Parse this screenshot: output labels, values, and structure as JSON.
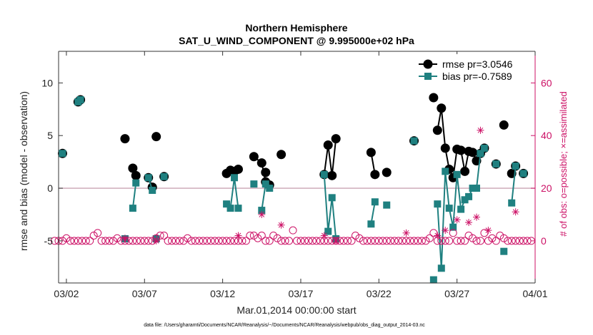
{
  "chart_data": {
    "type": "line",
    "title": "Northern Hemisphere",
    "subtitle": "SAT_U_WIND_COMPONENT @ 9.995000e+02 hPa",
    "xlabel": "Mar.01,2014 00:00:00 start",
    "ylabel": "rmse and bias (model - observation)",
    "y2label": "# of obs: o=possible; ×=assimilated",
    "footnote": "data file: /Users/gharamti/Documents/NCAR/Reanalysis/~/Documents/NCAR/Reanalysis/webpub/obs_diag_output_2014-03.nc",
    "xlim": [
      1.5,
      32
    ],
    "ylim": [
      -9,
      13
    ],
    "y2lim": [
      -16,
      72
    ],
    "x_ticks": [
      2,
      7,
      12,
      17,
      22,
      27,
      32
    ],
    "x_tick_labels": [
      "03/02",
      "03/07",
      "03/12",
      "03/17",
      "03/22",
      "03/27",
      "04/01"
    ],
    "y_ticks": [
      -5,
      0,
      5,
      10
    ],
    "y_tick_labels": [
      "-5",
      "0",
      "5",
      "10"
    ],
    "y2_ticks": [
      0,
      20,
      40,
      60
    ],
    "y2_tick_labels": [
      "0",
      "20",
      "40",
      "60"
    ],
    "legend_position": "top-right",
    "series": [
      {
        "name": "rmse pr=3.0546",
        "color": "#000000",
        "marker": "circle",
        "segments": [
          [
            [
              1.75,
              3.3
            ]
          ],
          [
            [
              2.75,
              8.2
            ],
            [
              2.9,
              8.4
            ]
          ],
          [
            [
              5.75,
              4.7
            ]
          ],
          [
            [
              6.25,
              1.9
            ],
            [
              6.45,
              1.2
            ]
          ],
          [
            [
              7.25,
              1.0
            ],
            [
              7.5,
              0.1
            ]
          ],
          [
            [
              7.75,
              4.9
            ]
          ],
          [
            [
              8.25,
              1.1
            ]
          ],
          [
            [
              12.25,
              1.4
            ],
            [
              12.5,
              1.7
            ],
            [
              12.75,
              1.6
            ],
            [
              13.0,
              1.8
            ]
          ],
          [
            [
              14.0,
              3.0
            ],
            [
              14.5,
              2.4
            ],
            [
              14.75,
              0.6
            ],
            [
              15.0,
              0.3
            ]
          ],
          [
            [
              14.75,
              1.5
            ]
          ],
          [
            [
              15.75,
              3.2
            ]
          ],
          [
            [
              18.5,
              1.3
            ],
            [
              18.75,
              4.1
            ],
            [
              19.0,
              1.2
            ],
            [
              19.25,
              4.7
            ]
          ],
          [
            [
              21.5,
              3.4
            ],
            [
              21.75,
              1.3
            ]
          ],
          [
            [
              22.5,
              1.5
            ]
          ],
          [
            [
              24.25,
              4.5
            ]
          ],
          [
            [
              25.5,
              8.6
            ]
          ],
          [
            [
              25.75,
              5.5
            ],
            [
              26.0,
              7.6
            ],
            [
              26.25,
              3.8
            ],
            [
              26.5,
              1.8
            ],
            [
              26.75,
              1.0
            ],
            [
              27.0,
              3.7
            ],
            [
              27.25,
              3.6
            ],
            [
              27.5,
              1.6
            ],
            [
              27.75,
              3.5
            ],
            [
              28.0,
              3.4
            ],
            [
              28.25,
              2.6
            ],
            [
              28.5,
              3.3
            ],
            [
              28.75,
              3.8
            ]
          ],
          [
            [
              29.5,
              2.3
            ]
          ],
          [
            [
              30.0,
              6.0
            ]
          ],
          [
            [
              30.5,
              1.4
            ],
            [
              30.75,
              2.1
            ]
          ],
          [
            [
              31.25,
              1.4
            ]
          ]
        ]
      },
      {
        "name": "bias pr=-0.7589",
        "color": "#1f8080",
        "marker": "square",
        "segments": [
          [
            [
              1.75,
              3.3
            ]
          ],
          [
            [
              2.75,
              8.2
            ],
            [
              2.9,
              8.4
            ]
          ],
          [
            [
              5.75,
              -4.8
            ]
          ],
          [
            [
              6.25,
              -1.9
            ],
            [
              6.45,
              0.5
            ]
          ],
          [
            [
              7.25,
              1.0
            ],
            [
              7.5,
              -0.2
            ]
          ],
          [
            [
              7.75,
              -4.8
            ]
          ],
          [
            [
              8.25,
              1.1
            ]
          ],
          [
            [
              12.25,
              -1.5
            ],
            [
              12.5,
              -1.9
            ],
            [
              12.75,
              1.0
            ],
            [
              13.0,
              -1.9
            ]
          ],
          [
            [
              14.0,
              0.4
            ]
          ],
          [
            [
              14.5,
              -2.1
            ],
            [
              14.75,
              0.4
            ],
            [
              15.0,
              0.0
            ]
          ],
          [
            [
              18.5,
              1.3
            ],
            [
              18.75,
              -4.1
            ],
            [
              19.0,
              -0.9
            ],
            [
              19.25,
              -4.8
            ]
          ],
          [
            [
              21.5,
              -3.4
            ],
            [
              21.75,
              -1.3
            ]
          ],
          [
            [
              22.5,
              -1.6
            ]
          ],
          [
            [
              24.25,
              4.5
            ]
          ],
          [
            [
              25.5,
              -8.7
            ]
          ],
          [
            [
              25.75,
              -1.5
            ],
            [
              26.0,
              -7.6
            ],
            [
              26.25,
              1.6
            ],
            [
              26.5,
              -1.9
            ],
            [
              26.75,
              -3.7
            ],
            [
              27.0,
              1.3
            ],
            [
              27.25,
              -2.0
            ],
            [
              27.5,
              -1.1
            ],
            [
              27.75,
              -0.8
            ],
            [
              28.0,
              0.0
            ],
            [
              28.25,
              0.0
            ],
            [
              28.5,
              3.3
            ],
            [
              28.75,
              3.8
            ]
          ],
          [
            [
              29.5,
              2.3
            ]
          ],
          [
            [
              30.0,
              -6.0
            ]
          ],
          [
            [
              30.5,
              -1.4
            ],
            [
              30.75,
              2.1
            ]
          ],
          [
            [
              31.25,
              1.4
            ]
          ]
        ]
      }
    ],
    "obs_possible": {
      "name": "# of obs possible",
      "color": "#cc1166",
      "marker": "open-circle",
      "x_start": 1.25,
      "x_step": 0.25,
      "values": [
        0,
        0,
        0,
        1,
        0,
        0,
        0,
        0,
        0,
        0,
        2,
        3,
        0,
        0,
        0,
        0,
        1,
        0,
        0,
        0,
        0,
        0,
        0,
        0,
        0,
        0,
        1,
        2,
        2,
        0,
        0,
        0,
        0,
        0,
        1,
        0,
        0,
        0,
        0,
        0,
        0,
        0,
        0,
        0,
        0,
        0,
        0,
        0,
        0,
        0,
        2,
        2,
        1,
        2,
        0,
        0,
        2,
        1,
        0,
        0,
        0,
        4,
        0,
        0,
        0,
        0,
        0,
        0,
        0,
        0,
        0,
        0,
        0,
        0,
        0,
        0,
        0,
        2,
        1,
        0,
        0,
        0,
        0,
        0,
        0,
        0,
        0,
        0,
        0,
        0,
        0,
        0,
        0,
        0,
        0,
        0,
        1,
        3,
        0,
        0,
        0,
        0,
        3,
        0,
        0,
        0,
        2,
        1,
        0,
        0,
        3,
        0,
        1,
        0,
        2,
        1,
        0,
        0,
        0,
        0,
        0,
        0,
        0
      ]
    },
    "obs_assimilated": {
      "name": "# of obs assimilated",
      "color": "#cc1166",
      "marker": "asterisk",
      "x": [
        5.75,
        7.75,
        13.0,
        14.5,
        15.75,
        18.5,
        19.25,
        23.75,
        25.75,
        26.25,
        27.0,
        27.75,
        28.25,
        28.5,
        29.0,
        30.75
      ],
      "values": [
        1,
        0,
        2,
        10,
        6,
        2,
        0,
        3,
        2,
        4,
        8,
        7,
        9,
        42,
        4,
        11
      ]
    }
  }
}
